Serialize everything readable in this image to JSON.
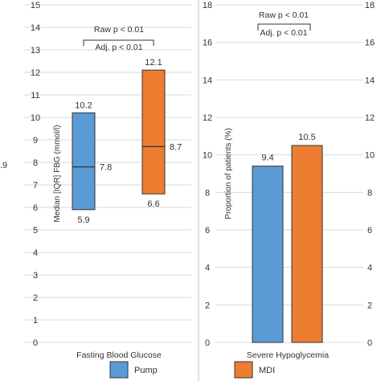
{
  "chart_data": [
    {
      "type": "boxplot",
      "ylabel": "Median [IQR] FBG (mmol/l)",
      "xlabel": "Fasting Blood Glucose",
      "ylim": [
        0,
        15
      ],
      "yticks": [
        "0",
        "1",
        "2",
        "3",
        "4",
        "5",
        "6",
        "7",
        "8",
        "9",
        "10",
        "11",
        "12",
        "13",
        "14",
        "15"
      ],
      "grid": true,
      "series": [
        {
          "name": "Pump",
          "color": "#5B9BD5",
          "q1": 5.9,
          "median": 7.8,
          "q3": 10.2,
          "labels": {
            "q1": "5.9",
            "median": "7.8",
            "q3": "10.2"
          }
        },
        {
          "name": "MDI",
          "color": "#ED7D31",
          "q1": 6.6,
          "median": 8.7,
          "q3": 12.1,
          "labels": {
            "q1": "6.6",
            "median": "8.7",
            "q3": "12.1"
          }
        }
      ],
      "annotations": [
        "Raw p < 0.01",
        "Adj. p < 0.01"
      ],
      "edge_label": ".9"
    },
    {
      "type": "bar",
      "ylabel": "Proportion of patients (%)",
      "xlabel": "Severe Hypoglycemia",
      "ylim": [
        0,
        18
      ],
      "yticks": [
        "0",
        "2",
        "4",
        "6",
        "8",
        "10",
        "12",
        "14",
        "16",
        "18"
      ],
      "grid": true,
      "series": [
        {
          "name": "Pump",
          "color": "#5B9BD5",
          "value": 9.4,
          "label": "9.4"
        },
        {
          "name": "MDI",
          "color": "#ED7D31",
          "value": 10.5,
          "label": "10.5"
        }
      ],
      "annotations": [
        "Raw p < 0.01",
        "Adj. p < 0.01"
      ]
    }
  ],
  "legend": {
    "position": "bottom",
    "items": [
      {
        "label": "Pump",
        "color": "#5B9BD5"
      },
      {
        "label": "MDI",
        "color": "#ED7D31"
      }
    ]
  }
}
